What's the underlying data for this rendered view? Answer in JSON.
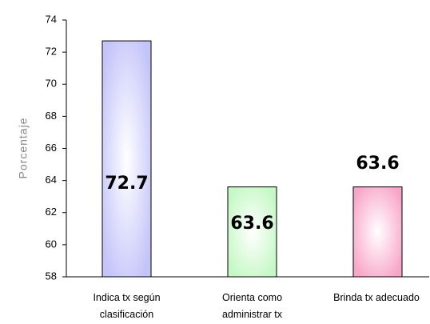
{
  "chart_data": {
    "type": "bar",
    "ylabel": "Porcentaje",
    "categories": [
      "Indica tx según clasificación",
      "Orienta como administrar tx",
      "Brinda tx adecuado"
    ],
    "values": [
      72.7,
      63.6,
      63.6
    ],
    "colors": [
      "#c4c4fa",
      "#c4f8c4",
      "#f8a6c8"
    ],
    "ylim": [
      58,
      74
    ],
    "yticks": [
      58,
      60,
      62,
      64,
      66,
      68,
      70,
      72,
      74
    ],
    "grid": false
  }
}
